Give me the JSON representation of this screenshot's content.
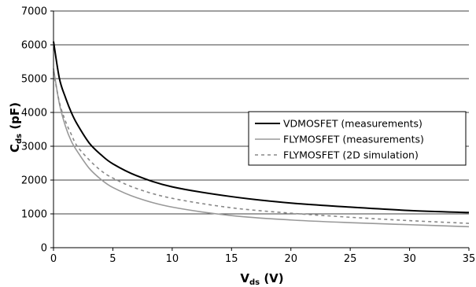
{
  "chart_data": {
    "type": "line",
    "title": "",
    "xlabel": {
      "main": "V",
      "sub": "ds",
      "unit": " (V)"
    },
    "ylabel": {
      "main": "C",
      "sub": "ds",
      "unit": " (pF)"
    },
    "xlim": [
      0,
      35
    ],
    "ylim": [
      0,
      7000
    ],
    "xticks": [
      0,
      5,
      10,
      15,
      20,
      25,
      30,
      35
    ],
    "yticks": [
      0,
      1000,
      2000,
      3000,
      4000,
      5000,
      6000,
      7000
    ],
    "grid": {
      "x": false,
      "y": true
    },
    "legend_position": "center-right",
    "series": [
      {
        "name": "VDMOSFET (measurements)",
        "color": "#000000",
        "style": "solid",
        "x": [
          0,
          0.5,
          1,
          1.5,
          2,
          3,
          4,
          5,
          7,
          10,
          15,
          20,
          25,
          30,
          35
        ],
        "y": [
          6100,
          5000,
          4450,
          4000,
          3650,
          3100,
          2750,
          2480,
          2130,
          1800,
          1510,
          1320,
          1200,
          1100,
          1040
        ]
      },
      {
        "name": "FLYMOSFET (measurements)",
        "color": "#999999",
        "style": "solid",
        "x": [
          0,
          0.5,
          1,
          1.5,
          2,
          3,
          4,
          5,
          7,
          10,
          15,
          20,
          25,
          30,
          35
        ],
        "y": [
          5300,
          4250,
          3600,
          3150,
          2850,
          2350,
          2020,
          1780,
          1480,
          1200,
          950,
          820,
          740,
          680,
          620
        ]
      },
      {
        "name": "FLYMOSFET (2D simulation)",
        "color": "#888888",
        "style": "dashed",
        "x": [
          0,
          0.5,
          1,
          1.5,
          2,
          3,
          4,
          5,
          7,
          10,
          15,
          20,
          25,
          30,
          35
        ],
        "y": [
          5200,
          4300,
          3750,
          3350,
          3000,
          2600,
          2280,
          2060,
          1750,
          1460,
          1180,
          1020,
          900,
          800,
          720
        ]
      }
    ]
  }
}
